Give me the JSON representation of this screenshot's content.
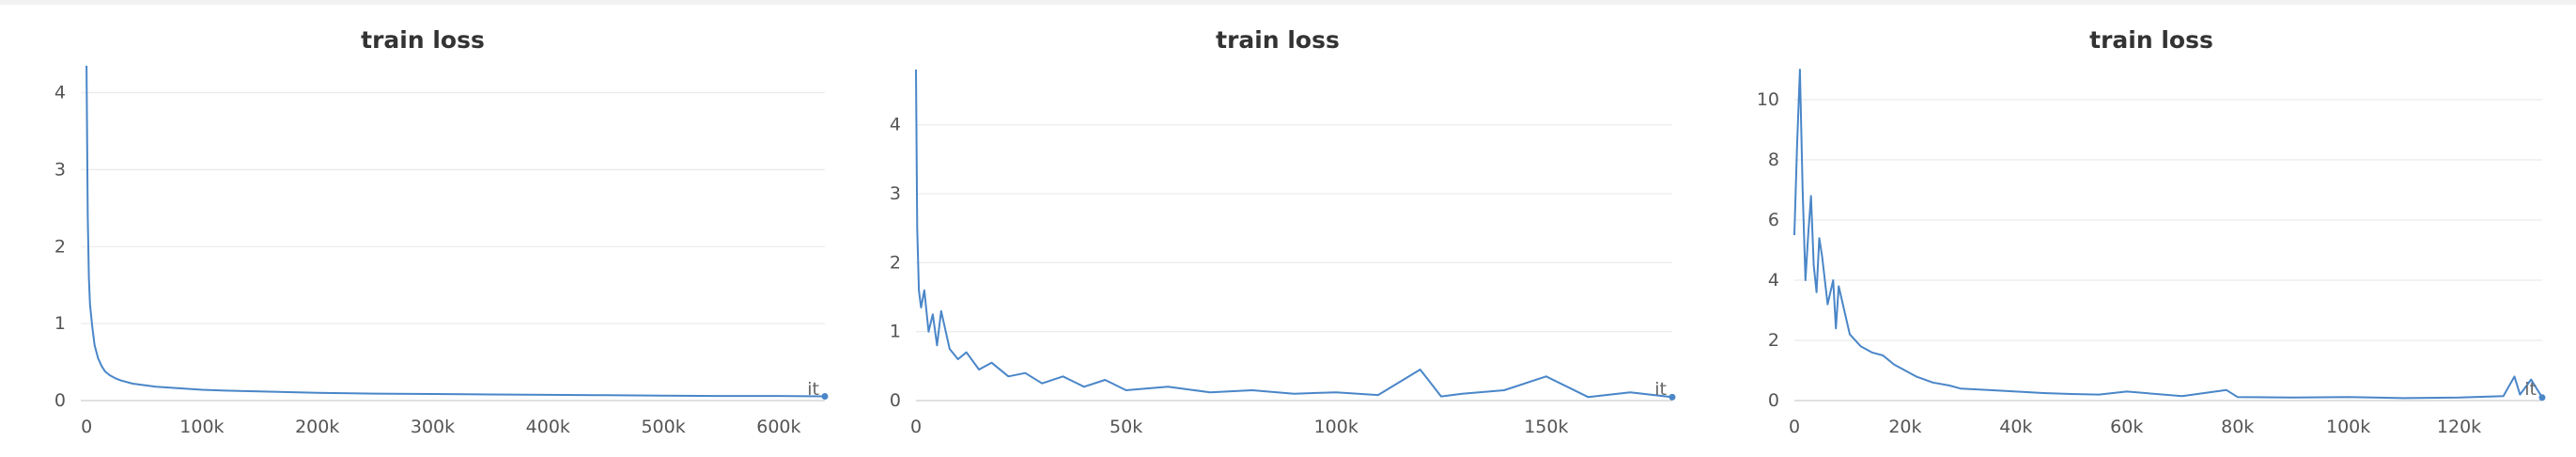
{
  "colors": {
    "line": "#4a86c8",
    "grid": "#ececec",
    "axis": "#d6d6d6"
  },
  "chart_data": [
    {
      "type": "line",
      "title": "train loss",
      "xaxis_label": "it",
      "grid": true,
      "xlim": [
        -5000,
        640000
      ],
      "ylim": [
        0,
        4.3
      ],
      "xticks": [
        0,
        100000,
        200000,
        300000,
        400000,
        500000,
        600000
      ],
      "xtick_labels": [
        "0",
        "100k",
        "200k",
        "300k",
        "400k",
        "500k",
        "600k"
      ],
      "yticks": [
        0,
        1,
        2,
        3,
        4
      ],
      "ytick_labels": [
        "0",
        "1",
        "2",
        "3",
        "4"
      ],
      "series": [
        {
          "x": [
            0,
            500,
            1000,
            2000,
            3000,
            5000,
            7000,
            10000,
            13000,
            16000,
            20000,
            25000,
            30000,
            40000,
            50000,
            60000,
            80000,
            100000,
            120000,
            150000,
            200000,
            250000,
            300000,
            350000,
            400000,
            450000,
            500000,
            550000,
            600000,
            640000
          ],
          "y": [
            4.35,
            3.3,
            2.4,
            1.6,
            1.25,
            0.95,
            0.72,
            0.55,
            0.45,
            0.38,
            0.33,
            0.29,
            0.26,
            0.22,
            0.2,
            0.18,
            0.16,
            0.14,
            0.13,
            0.12,
            0.1,
            0.09,
            0.085,
            0.08,
            0.075,
            0.07,
            0.065,
            0.06,
            0.06,
            0.055
          ]
        }
      ]
    },
    {
      "type": "line",
      "title": "train loss",
      "xaxis_label": "it",
      "grid": true,
      "xlim": [
        0,
        180000
      ],
      "ylim": [
        0,
        4.8
      ],
      "xticks": [
        0,
        50000,
        100000,
        150000
      ],
      "xtick_labels": [
        "0",
        "50k",
        "100k",
        "150k"
      ],
      "yticks": [
        0,
        1,
        2,
        3,
        4
      ],
      "ytick_labels": [
        "0",
        "1",
        "2",
        "3",
        "4"
      ],
      "series": [
        {
          "x": [
            0,
            300,
            700,
            1200,
            2000,
            3000,
            4000,
            5000,
            6000,
            8000,
            10000,
            12000,
            15000,
            18000,
            22000,
            26000,
            30000,
            35000,
            40000,
            45000,
            50000,
            60000,
            70000,
            80000,
            90000,
            100000,
            110000,
            120000,
            125000,
            130000,
            140000,
            150000,
            160000,
            170000,
            180000
          ],
          "y": [
            4.8,
            2.5,
            1.6,
            1.35,
            1.6,
            1.0,
            1.25,
            0.8,
            1.3,
            0.75,
            0.6,
            0.7,
            0.45,
            0.55,
            0.35,
            0.4,
            0.25,
            0.35,
            0.2,
            0.3,
            0.15,
            0.2,
            0.12,
            0.15,
            0.1,
            0.12,
            0.08,
            0.45,
            0.06,
            0.1,
            0.15,
            0.35,
            0.05,
            0.12,
            0.05
          ]
        }
      ]
    },
    {
      "type": "line",
      "title": "train loss",
      "xaxis_label": "it",
      "grid": true,
      "xlim": [
        0,
        135000
      ],
      "ylim": [
        0,
        11
      ],
      "xticks": [
        0,
        20000,
        40000,
        60000,
        80000,
        100000,
        120000
      ],
      "xtick_labels": [
        "0",
        "20k",
        "40k",
        "60k",
        "80k",
        "100k",
        "120k"
      ],
      "yticks": [
        0,
        2,
        4,
        6,
        8,
        10
      ],
      "ytick_labels": [
        "0",
        "2",
        "4",
        "6",
        "8",
        "10"
      ],
      "series": [
        {
          "x": [
            0,
            500,
            1000,
            1500,
            2000,
            2500,
            3000,
            3500,
            4000,
            4500,
            5000,
            6000,
            7000,
            7500,
            8000,
            9000,
            10000,
            12000,
            14000,
            16000,
            18000,
            20000,
            22000,
            25000,
            28000,
            30000,
            35000,
            40000,
            45000,
            50000,
            55000,
            60000,
            70000,
            78000,
            80000,
            90000,
            100000,
            110000,
            120000,
            128000,
            130000,
            131000,
            133000,
            135000
          ],
          "y": [
            5.5,
            8.5,
            11.0,
            7.0,
            4.0,
            5.5,
            6.8,
            4.5,
            3.6,
            5.4,
            4.8,
            3.2,
            4.0,
            2.4,
            3.8,
            3.0,
            2.2,
            1.8,
            1.6,
            1.5,
            1.2,
            1.0,
            0.8,
            0.6,
            0.5,
            0.4,
            0.35,
            0.3,
            0.25,
            0.22,
            0.2,
            0.3,
            0.15,
            0.35,
            0.12,
            0.1,
            0.12,
            0.08,
            0.1,
            0.15,
            0.8,
            0.2,
            0.7,
            0.1
          ]
        }
      ]
    }
  ]
}
